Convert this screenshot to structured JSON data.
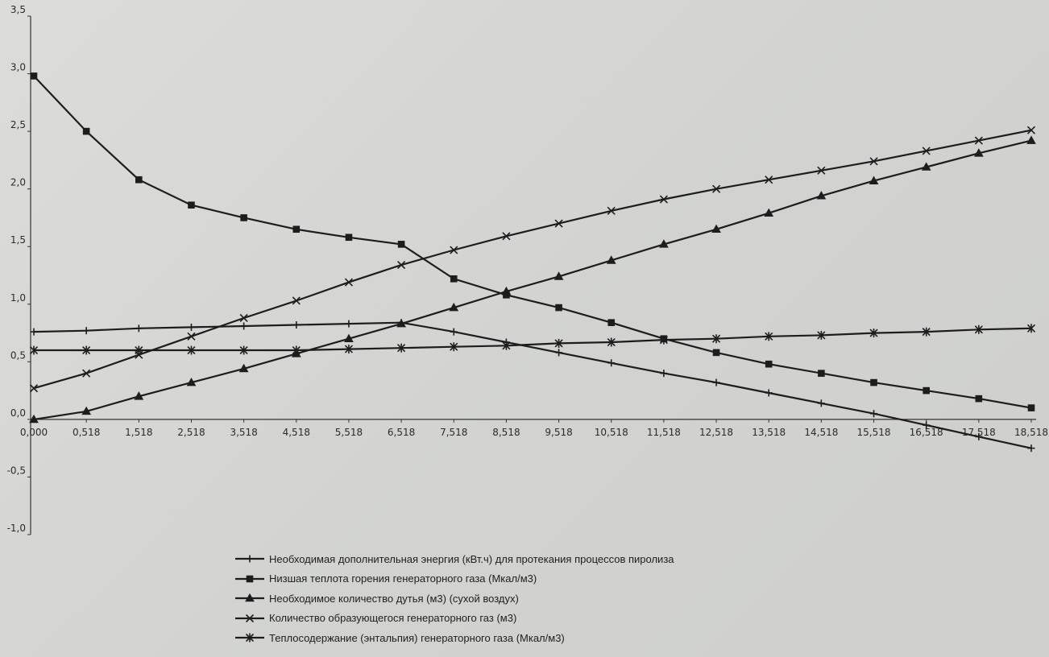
{
  "chart_data": {
    "type": "line",
    "title": "",
    "xlabel": "",
    "ylabel": "",
    "x": [
      "0,000",
      "0,518",
      "1,518",
      "2,518",
      "3,518",
      "4,518",
      "5,518",
      "6,518",
      "7,518",
      "8,518",
      "9,518",
      "10,518",
      "11,518",
      "12,518",
      "13,518",
      "14,518",
      "15,518",
      "16,518",
      "17,518",
      "18,518"
    ],
    "yticks": [
      "-1,0",
      "-0,5",
      "0,0",
      "0,5",
      "1,0",
      "1,5",
      "2,0",
      "2,5",
      "3,0",
      "3,5"
    ],
    "ylim": [
      -1.0,
      3.5
    ],
    "grid": false,
    "legend_position": "bottom",
    "series": [
      {
        "name": "Необходимая дополнительная энергия (кВт.ч) для протекания процессов пиролиза",
        "marker": "plus",
        "values": [
          0.76,
          0.77,
          0.79,
          0.8,
          0.81,
          0.82,
          0.83,
          0.84,
          0.76,
          0.67,
          0.58,
          0.49,
          0.4,
          0.32,
          0.23,
          0.14,
          0.05,
          -0.05,
          -0.15,
          -0.25
        ]
      },
      {
        "name": "Низшая теплота горения генераторного газа (Мкал/м3)",
        "marker": "square",
        "values": [
          2.98,
          2.5,
          2.08,
          1.86,
          1.75,
          1.65,
          1.58,
          1.52,
          1.22,
          1.08,
          0.97,
          0.84,
          0.7,
          0.58,
          0.48,
          0.4,
          0.32,
          0.25,
          0.18,
          0.1
        ]
      },
      {
        "name": "Необходимое количество дутья (м3) (сухой воздух)",
        "marker": "triangle",
        "values": [
          0.0,
          0.07,
          0.2,
          0.32,
          0.44,
          0.57,
          0.7,
          0.83,
          0.97,
          1.11,
          1.24,
          1.38,
          1.52,
          1.65,
          1.79,
          1.94,
          2.07,
          2.19,
          2.31,
          2.42
        ]
      },
      {
        "name": "Количество образующегося генераторного газ (м3)",
        "marker": "x",
        "values": [
          0.27,
          0.4,
          0.56,
          0.72,
          0.88,
          1.03,
          1.19,
          1.34,
          1.47,
          1.59,
          1.7,
          1.81,
          1.91,
          2.0,
          2.08,
          2.16,
          2.24,
          2.33,
          2.42,
          2.51
        ]
      },
      {
        "name": "Теплосодержание (энтальпия) генераторного газа (Мкал/м3)",
        "marker": "star",
        "values": [
          0.6,
          0.6,
          0.6,
          0.6,
          0.6,
          0.6,
          0.61,
          0.62,
          0.63,
          0.64,
          0.66,
          0.67,
          0.69,
          0.7,
          0.72,
          0.73,
          0.75,
          0.76,
          0.78,
          0.79
        ]
      }
    ]
  }
}
